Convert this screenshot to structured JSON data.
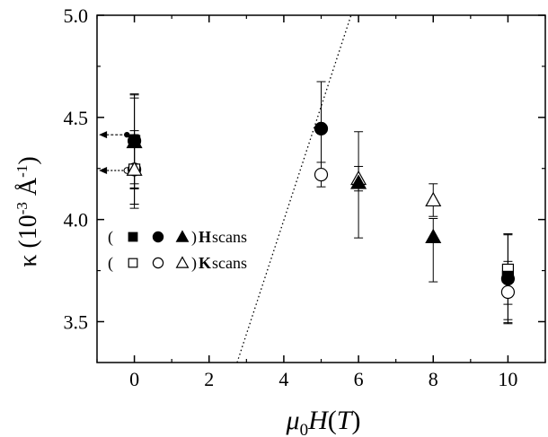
{
  "chart_data": {
    "type": "scatter",
    "xlabel": {
      "mu": "μ",
      "sub": "0",
      "rest": "H",
      "paren_open": "(",
      "unit": "T",
      "paren_close": ")"
    },
    "ylabel": {
      "kappa": "κ",
      "open": " (10",
      "exp1": "-3",
      "unit": " Å",
      "exp2": "-1",
      "close": ")"
    },
    "xlim": [
      -1,
      11
    ],
    "ylim": [
      3.3,
      5.0
    ],
    "xticks": [
      0,
      2,
      4,
      6,
      8,
      10
    ],
    "xtick_labels": [
      "0",
      "2",
      "4",
      "6",
      "8",
      "10"
    ],
    "yticks": [
      3.5,
      4.0,
      4.5,
      5.0
    ],
    "ytick_labels": [
      "3.5",
      "4.0",
      "4.5",
      "5.0"
    ],
    "grid": false,
    "legend_position": "left",
    "legend": [
      {
        "open": "(",
        "markers": [
          "square-filled",
          "circle-filled",
          "triangle-filled"
        ],
        "close": ")",
        "bold": "H",
        "text": " scans"
      },
      {
        "open": "(",
        "markers": [
          "square-open",
          "circle-open",
          "triangle-open"
        ],
        "close": ")",
        "bold": "K",
        "text": " scans"
      }
    ],
    "series": [
      {
        "marker": "square-filled",
        "points": [
          {
            "x": 0,
            "y": 4.385,
            "err": 0.21
          },
          {
            "x": 10,
            "y": 3.72,
            "err": 0.21
          }
        ]
      },
      {
        "marker": "circle-filled",
        "points": [
          {
            "x": 0,
            "y": 4.385,
            "err": 0.23
          },
          {
            "x": 5,
            "y": 4.445,
            "err": 0.23
          },
          {
            "x": 10,
            "y": 3.71,
            "err": 0.22
          }
        ]
      },
      {
        "marker": "triangle-filled",
        "points": [
          {
            "x": 0,
            "y": 4.38,
            "err": 0.23
          },
          {
            "x": 6,
            "y": 4.18,
            "err": 0.04
          },
          {
            "x": 8,
            "y": 3.915,
            "err": 0.09
          }
        ]
      },
      {
        "marker": "square-open",
        "points": [
          {
            "x": 0,
            "y": 4.245,
            "err": 0.17
          },
          {
            "x": 10,
            "y": 3.755,
            "err": 0.17
          }
        ]
      },
      {
        "marker": "circle-open",
        "points": [
          {
            "x": 0,
            "y": 4.245,
            "err": 0.17
          },
          {
            "x": 5,
            "y": 4.22,
            "err": 0.06
          },
          {
            "x": 10,
            "y": 3.645,
            "err": 0.15
          }
        ]
      },
      {
        "marker": "triangle-open",
        "points": [
          {
            "x": 0,
            "y": 4.245,
            "err": 0.19
          },
          {
            "x": 6,
            "y": 4.2,
            "err": 0.06
          },
          {
            "x": 8,
            "y": 4.095,
            "err": 0.08
          }
        ]
      }
    ],
    "asymmetric_errors": [
      {
        "x": 6,
        "y": 4.18,
        "up": 0.25,
        "down": 0.27
      },
      {
        "x": 8,
        "y": 3.915,
        "up": 0.09,
        "down": 0.22
      }
    ],
    "dotted_line": {
      "points": [
        [
          2.75,
          3.3
        ],
        [
          5.8,
          5.0
        ]
      ]
    },
    "arrows": [
      {
        "from_x": -0.2,
        "y": 4.415,
        "to_x": -0.95,
        "style": "filled"
      },
      {
        "from_x": -0.2,
        "y": 4.24,
        "to_x": -0.95,
        "style": "open"
      }
    ]
  }
}
